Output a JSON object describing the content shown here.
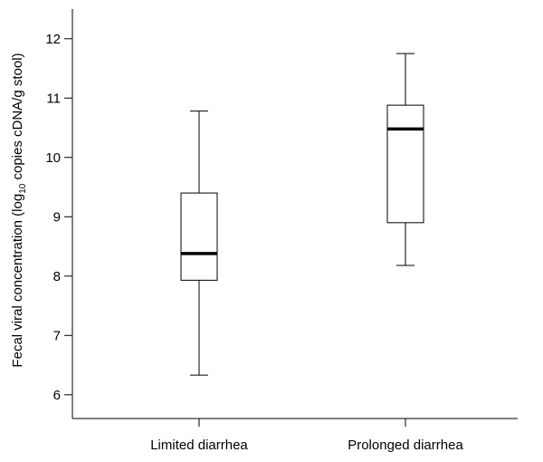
{
  "chart_data": {
    "type": "boxplot",
    "title": "",
    "xlabel": "",
    "ylabel": {
      "pre": "Fecal viral concentration (log",
      "sub": "10",
      "post": " copies cDNA/g stool)"
    },
    "ylim": [
      5.6,
      12.5
    ],
    "yticks": [
      "6",
      "7",
      "8",
      "9",
      "10",
      "11",
      "12"
    ],
    "grid": false,
    "categories": [
      "Limited diarrhea",
      "Prolonged diarrhea"
    ],
    "boxes": [
      {
        "category": "Limited diarrhea",
        "whisker_low": 6.33,
        "q1": 7.93,
        "median": 8.38,
        "q3": 9.4,
        "whisker_high": 10.78
      },
      {
        "category": "Prolonged diarrhea",
        "whisker_low": 8.18,
        "q1": 8.9,
        "median": 10.48,
        "q3": 10.88,
        "whisker_high": 11.75
      }
    ]
  }
}
